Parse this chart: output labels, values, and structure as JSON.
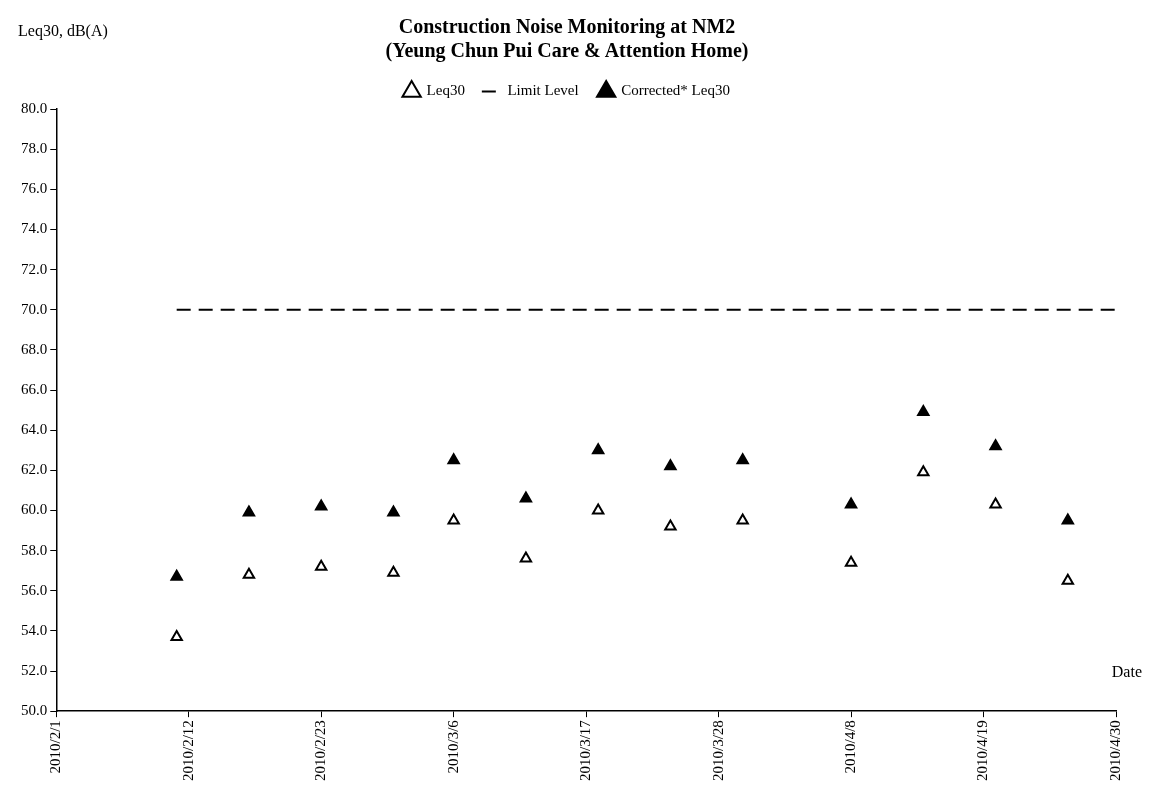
{
  "chart_data": {
    "type": "scatter",
    "title": "Construction Noise Monitoring at NM2\n(Yeung Chun Pui Care & Attention Home)",
    "xlabel": "Date",
    "ylabel": "Leq30, dB(A)",
    "x": [
      "2010-02-11",
      "2010-02-17",
      "2010-02-23",
      "2010-03-01",
      "2010-03-06",
      "2010-03-12",
      "2010-03-18",
      "2010-03-24",
      "2010-03-30",
      "2010-04-08",
      "2010-04-14",
      "2010-04-20",
      "2010-04-26"
    ],
    "series": [
      {
        "name": "Leq30",
        "color": "#000000",
        "marker": "triangle",
        "values": [
          53.7,
          56.8,
          57.2,
          56.9,
          59.5,
          57.6,
          60.0,
          59.2,
          59.5,
          57.4,
          61.9,
          60.3,
          56.5
        ]
      },
      {
        "name": "Limit Level",
        "type": "line",
        "color": "#000000",
        "marker": "none",
        "line_style": "dashed",
        "x": [
          "2010-02-11",
          "2010-04-30"
        ],
        "values": [
          70,
          70
        ]
      },
      {
        "name": "Corrected* Leq30",
        "color": "#000000",
        "marker": "triangle",
        "values": [
          56.7,
          59.9,
          60.2,
          59.9,
          62.5,
          60.6,
          63.0,
          62.2,
          62.5,
          60.3,
          64.9,
          63.2,
          59.5
        ]
      }
    ],
    "xlim": [
      "2010-02-01",
      "2010-04-30"
    ],
    "xticks": [
      {
        "value": "2010-02-01",
        "label": "2010/2/1"
      },
      {
        "value": "2010-02-12",
        "label": "2010/2/12"
      },
      {
        "value": "2010-02-23",
        "label": "2010/2/23"
      },
      {
        "value": "2010-03-06",
        "label": "2010/3/6"
      },
      {
        "value": "2010-03-17",
        "label": "2010/3/17"
      },
      {
        "value": "2010-03-28",
        "label": "2010/3/28"
      },
      {
        "value": "2010-04-08",
        "label": "2010/4/8"
      },
      {
        "value": "2010-04-19",
        "label": "2010/4/19"
      },
      {
        "value": "2010-04-30",
        "label": "2010/4/30"
      }
    ],
    "ylim": [
      50,
      80
    ],
    "yticks": [
      {
        "value": 50,
        "label": "50.0"
      },
      {
        "value": 52,
        "label": "52.0"
      },
      {
        "value": 54,
        "label": "54.0"
      },
      {
        "value": 56,
        "label": "56.0"
      },
      {
        "value": 58,
        "label": "58.0"
      },
      {
        "value": 60,
        "label": "60.0"
      },
      {
        "value": 62,
        "label": "62.0"
      },
      {
        "value": 64,
        "label": "64.0"
      },
      {
        "value": 66,
        "label": "66.0"
      },
      {
        "value": 68,
        "label": "68.0"
      },
      {
        "value": 70,
        "label": "70.0"
      },
      {
        "value": 72,
        "label": "72.0"
      },
      {
        "value": 74,
        "label": "74.0"
      },
      {
        "value": 76,
        "label": "76.0"
      },
      {
        "value": 78,
        "label": "78.0"
      },
      {
        "value": 80,
        "label": "80.0"
      }
    ],
    "grid": false,
    "legend": "top"
  }
}
